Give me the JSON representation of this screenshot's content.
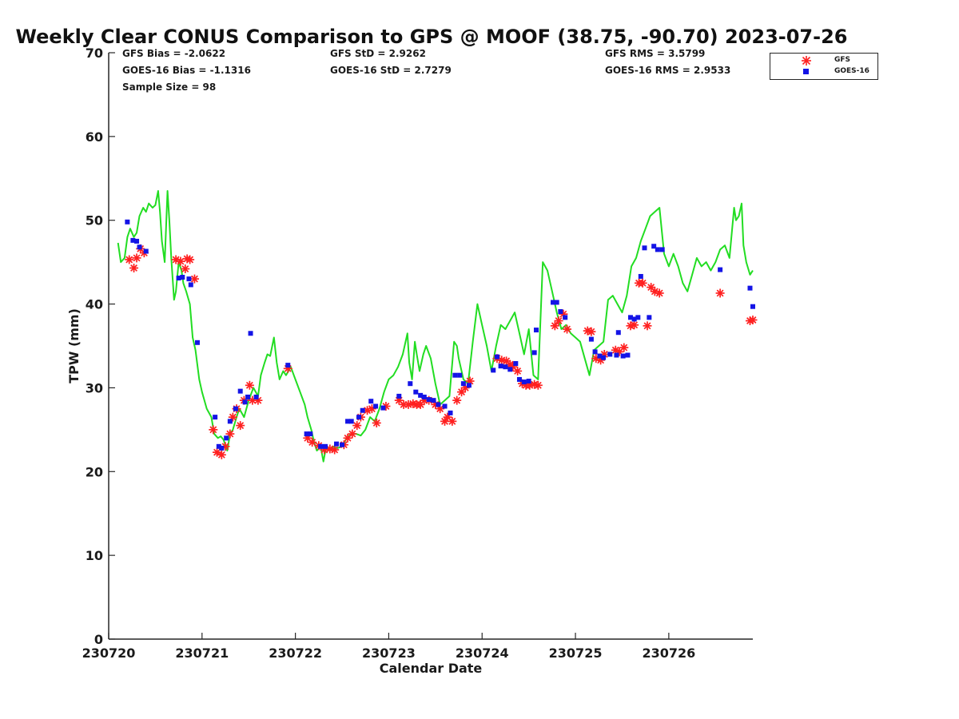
{
  "chart_data": {
    "type": "line",
    "title": "Weekly Clear CONUS Comparison to GPS @ MOOF (38.75, -90.70) 2023-07-26",
    "xlabel": "Calendar Date",
    "ylabel": "TPW (mm)",
    "xlim": [
      0,
      6.9
    ],
    "ylim": [
      0,
      70
    ],
    "x_tick_labels": [
      "230720",
      "230721",
      "230722",
      "230723",
      "230724",
      "230725",
      "230726"
    ],
    "y_ticks": [
      0,
      10,
      20,
      30,
      40,
      50,
      60,
      70
    ],
    "grid": false,
    "legend_position": "top-right, outside plot",
    "stats": {
      "gfs_bias": "GFS Bias = -2.0622",
      "goes_bias": "GOES-16 Bias = -1.1316",
      "sample_size": "Sample Size = 98",
      "gfs_std": "GFS StD = 2.9262",
      "goes_std": "GOES-16 StD = 2.7279",
      "gfs_rms": "GFS RMS = 3.5799",
      "goes_rms": "GOES-16 RMS = 2.9533"
    },
    "series": [
      {
        "name": "GPS",
        "style": "line",
        "color": "#22dd22",
        "x": [
          0.1,
          0.13,
          0.17,
          0.2,
          0.23,
          0.27,
          0.3,
          0.33,
          0.37,
          0.4,
          0.43,
          0.47,
          0.5,
          0.53,
          0.55,
          0.57,
          0.6,
          0.63,
          0.65,
          0.67,
          0.7,
          0.72,
          0.75,
          0.78,
          0.8,
          0.83,
          0.87,
          0.9,
          0.93,
          0.97,
          1.0,
          1.05,
          1.1,
          1.13,
          1.17,
          1.2,
          1.23,
          1.27,
          1.3,
          1.33,
          1.37,
          1.4,
          1.45,
          1.5,
          1.55,
          1.6,
          1.63,
          1.67,
          1.7,
          1.73,
          1.77,
          1.8,
          1.83,
          1.87,
          1.9,
          1.95,
          2.0,
          2.05,
          2.1,
          2.13,
          2.17,
          2.2,
          2.23,
          2.27,
          2.3,
          2.33,
          2.37,
          2.4,
          2.45,
          2.5,
          2.55,
          2.6,
          2.65,
          2.7,
          2.75,
          2.8,
          2.85,
          2.9,
          2.95,
          3.0,
          3.05,
          3.1,
          3.15,
          3.2,
          3.22,
          3.25,
          3.28,
          3.3,
          3.33,
          3.37,
          3.4,
          3.45,
          3.5,
          3.55,
          3.6,
          3.65,
          3.7,
          3.73,
          3.75,
          3.8,
          3.85,
          3.9,
          3.95,
          4.0,
          4.05,
          4.1,
          4.15,
          4.2,
          4.25,
          4.3,
          4.35,
          4.4,
          4.45,
          4.5,
          4.55,
          4.6,
          4.65,
          4.7,
          4.75,
          4.8,
          4.85,
          4.9,
          4.95,
          5.0,
          5.05,
          5.1,
          5.15,
          5.2,
          5.25,
          5.3,
          5.35,
          5.4,
          5.45,
          5.5,
          5.55,
          5.6,
          5.65,
          5.7,
          5.75,
          5.8,
          5.85,
          5.9,
          5.95,
          6.0,
          6.05,
          6.1,
          6.15,
          6.2,
          6.25,
          6.3,
          6.35,
          6.4,
          6.45,
          6.5,
          6.55,
          6.6,
          6.65,
          6.7,
          6.72,
          6.75,
          6.78,
          6.8,
          6.83,
          6.87,
          6.9
        ],
        "y": [
          47.3,
          45.0,
          45.5,
          48.0,
          49.0,
          48.0,
          48.5,
          50.5,
          51.5,
          51.0,
          52.0,
          51.5,
          51.8,
          53.5,
          51.0,
          47.5,
          45.0,
          53.5,
          50.0,
          45.5,
          40.5,
          41.5,
          45.0,
          44.0,
          42.5,
          41.5,
          40.0,
          36.0,
          34.5,
          31.0,
          29.5,
          27.5,
          26.5,
          24.5,
          24.0,
          24.2,
          23.8,
          22.5,
          24.5,
          25.0,
          26.5,
          27.5,
          26.5,
          28.5,
          30.0,
          29.0,
          31.5,
          33.0,
          34.0,
          33.8,
          36.0,
          33.0,
          31.0,
          32.0,
          31.5,
          32.5,
          31.0,
          29.5,
          28.0,
          26.5,
          25.0,
          23.5,
          22.5,
          23.0,
          21.2,
          23.0,
          22.5,
          23.0,
          22.8,
          23.0,
          24.0,
          24.5,
          24.5,
          24.3,
          25.0,
          26.5,
          26.0,
          27.5,
          29.5,
          31.0,
          31.5,
          32.5,
          34.0,
          36.5,
          33.0,
          31.0,
          35.5,
          34.0,
          32.0,
          34.0,
          35.0,
          33.5,
          30.5,
          28.0,
          28.5,
          29.0,
          35.5,
          35.0,
          33.5,
          31.0,
          30.5,
          35.5,
          40.0,
          37.5,
          35.0,
          32.0,
          35.0,
          37.5,
          37.0,
          38.0,
          39.0,
          36.5,
          34.0,
          37.0,
          31.5,
          31.0,
          45.0,
          44.0,
          41.5,
          39.0,
          37.0,
          37.5,
          36.5,
          36.0,
          35.5,
          33.5,
          31.5,
          34.5,
          35.0,
          35.5,
          40.5,
          41.0,
          40.0,
          39.0,
          41.0,
          44.5,
          45.5,
          47.5,
          49.0,
          50.5,
          51.0,
          51.5,
          46.0,
          44.5,
          46.0,
          44.5,
          42.5,
          41.5,
          43.5,
          45.5,
          44.5,
          45.0,
          44.0,
          45.0,
          46.5,
          47.0,
          45.5,
          51.5,
          50.0,
          50.5,
          52.0,
          47.0,
          45.0,
          43.5,
          44.0
        ]
      },
      {
        "name": "GFS",
        "style": "asterisk",
        "color": "#ff2020",
        "x": [
          0.22,
          0.27,
          0.3,
          0.34,
          0.38,
          0.72,
          0.77,
          0.82,
          0.84,
          0.87,
          0.92,
          1.12,
          1.16,
          1.21,
          1.25,
          1.3,
          1.33,
          1.37,
          1.41,
          1.45,
          1.51,
          1.54,
          1.6,
          1.92,
          2.13,
          2.18,
          2.25,
          2.31,
          2.37,
          2.42,
          2.52,
          2.56,
          2.61,
          2.66,
          2.7,
          2.77,
          2.82,
          2.87,
          2.97,
          3.11,
          3.16,
          3.21,
          3.26,
          3.3,
          3.34,
          3.38,
          3.43,
          3.5,
          3.55,
          3.6,
          3.63,
          3.68,
          3.73,
          3.78,
          3.82,
          3.87,
          4.16,
          4.21,
          4.26,
          4.3,
          4.33,
          4.38,
          4.43,
          4.47,
          4.51,
          4.56,
          4.6,
          4.78,
          4.82,
          4.87,
          4.91,
          5.13,
          5.17,
          5.22,
          5.27,
          5.31,
          5.43,
          5.47,
          5.52,
          5.59,
          5.63,
          5.68,
          5.72,
          5.77,
          5.81,
          5.85,
          5.9,
          6.55,
          6.87,
          6.9
        ],
        "y": [
          45.3,
          44.3,
          45.5,
          46.6,
          46.1,
          45.3,
          45.1,
          44.2,
          45.4,
          45.3,
          43.0,
          25.0,
          22.3,
          22.0,
          23.0,
          24.5,
          26.5,
          27.5,
          25.5,
          28.5,
          30.3,
          28.5,
          28.5,
          32.3,
          24.0,
          23.5,
          23.1,
          22.6,
          22.7,
          22.6,
          23.2,
          24.0,
          24.5,
          25.5,
          26.5,
          27.3,
          27.5,
          25.8,
          27.8,
          28.5,
          28.0,
          28.0,
          28.1,
          28.0,
          28.0,
          28.5,
          28.5,
          28.0,
          27.5,
          26.0,
          26.5,
          26.0,
          28.5,
          29.5,
          30.0,
          30.8,
          33.5,
          33.3,
          33.2,
          32.8,
          32.5,
          32.0,
          30.5,
          30.3,
          30.3,
          30.4,
          30.3,
          37.4,
          38.0,
          38.8,
          37.0,
          36.8,
          36.7,
          33.5,
          33.3,
          34.0,
          34.5,
          34.3,
          34.8,
          37.4,
          37.5,
          42.5,
          42.5,
          37.4,
          42.0,
          41.5,
          41.3,
          41.3,
          38.0,
          38.1
        ]
      },
      {
        "name": "GOES-16",
        "style": "square",
        "color": "#1414e6",
        "x": [
          0.2,
          0.26,
          0.3,
          0.33,
          0.4,
          0.75,
          0.79,
          0.86,
          0.88,
          0.95,
          1.14,
          1.18,
          1.21,
          1.26,
          1.3,
          1.36,
          1.41,
          1.46,
          1.49,
          1.52,
          1.58,
          1.92,
          2.12,
          2.16,
          2.27,
          2.32,
          2.44,
          2.5,
          2.56,
          2.6,
          2.68,
          2.72,
          2.81,
          2.86,
          2.94,
          3.11,
          3.23,
          3.29,
          3.34,
          3.38,
          3.43,
          3.48,
          3.53,
          3.6,
          3.66,
          3.71,
          3.76,
          3.8,
          3.86,
          4.12,
          4.16,
          4.2,
          4.25,
          4.3,
          4.36,
          4.4,
          4.45,
          4.5,
          4.56,
          4.58,
          4.76,
          4.8,
          4.84,
          4.89,
          5.17,
          5.21,
          5.26,
          5.3,
          5.37,
          5.44,
          5.46,
          5.51,
          5.56,
          5.59,
          5.63,
          5.67,
          5.7,
          5.74,
          5.79,
          5.84,
          5.88,
          5.93,
          6.55,
          6.87,
          6.9
        ],
        "y": [
          49.8,
          47.6,
          47.5,
          46.8,
          46.3,
          43.1,
          43.2,
          43.0,
          42.3,
          35.4,
          26.5,
          23.0,
          22.8,
          24.0,
          26.0,
          27.5,
          29.6,
          28.3,
          28.9,
          36.5,
          28.9,
          32.7,
          24.5,
          24.5,
          23.0,
          23.0,
          23.3,
          23.2,
          26.0,
          26.0,
          26.5,
          27.3,
          28.4,
          27.8,
          27.6,
          29.0,
          30.5,
          29.5,
          29.1,
          28.9,
          28.6,
          28.5,
          28.0,
          27.8,
          27.0,
          31.5,
          31.5,
          30.5,
          30.3,
          32.1,
          33.7,
          32.6,
          32.5,
          32.2,
          32.9,
          31.0,
          30.7,
          30.8,
          34.2,
          36.9,
          40.2,
          40.2,
          39.1,
          38.4,
          35.8,
          34.3,
          33.8,
          33.6,
          34.0,
          33.9,
          36.6,
          33.8,
          33.9,
          38.4,
          38.2,
          38.4,
          43.3,
          46.7,
          38.4,
          46.9,
          46.5,
          46.5,
          44.1,
          41.9,
          39.7
        ]
      }
    ]
  }
}
